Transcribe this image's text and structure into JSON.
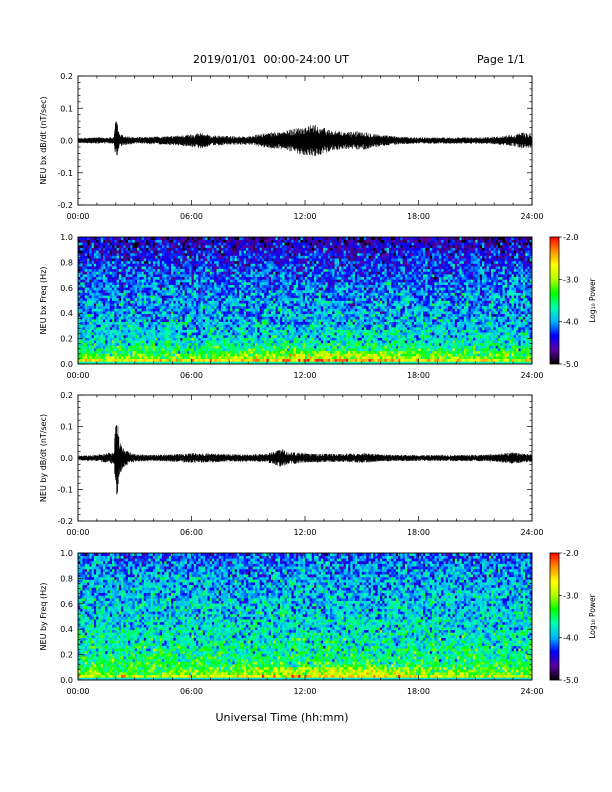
{
  "header": {
    "title": "2019/01/01  00:00-24:00 UT",
    "page": "Page 1/1"
  },
  "xlabel": "Universal Time (hh:mm)",
  "colorbar_levels": [
    "-2.0",
    "-3.0",
    "-4.0",
    "-5.0"
  ],
  "colors": {
    "colormap": [
      "#000000",
      "#5a00a0",
      "#0000ff",
      "#00b4ff",
      "#00ffb0",
      "#00ff00",
      "#b4ff00",
      "#ffff00",
      "#ff9000",
      "#ff0000"
    ]
  },
  "chart_data": [
    {
      "type": "line",
      "ylabel": "NEU bx dB/dt (nT/sec)",
      "xlim": [
        0,
        24
      ],
      "ylim": [
        -0.2,
        0.2
      ],
      "x_ticks": [
        "00:00",
        "06:00",
        "12:00",
        "18:00",
        "24:00"
      ],
      "y_ticks": [
        "0.2",
        "0.1",
        "0.0",
        "-0.1",
        "-0.2"
      ],
      "series": [
        {
          "envelope_hours": [
            0,
            1,
            1.9,
            2.0,
            2.1,
            2.2,
            2.5,
            3,
            4,
            5,
            6,
            6.5,
            7,
            8,
            9,
            10,
            11,
            11.5,
            12,
            12.5,
            13,
            13.5,
            14,
            15,
            16,
            17,
            18,
            19,
            20,
            21,
            22,
            23,
            23.5,
            24
          ],
          "envelope_amplitude": [
            0.008,
            0.01,
            0.01,
            0.07,
            0.05,
            0.02,
            0.015,
            0.01,
            0.012,
            0.014,
            0.02,
            0.025,
            0.016,
            0.014,
            0.013,
            0.024,
            0.03,
            0.04,
            0.045,
            0.05,
            0.04,
            0.032,
            0.026,
            0.03,
            0.018,
            0.012,
            0.01,
            0.01,
            0.01,
            0.01,
            0.012,
            0.018,
            0.025,
            0.02
          ]
        }
      ]
    },
    {
      "type": "heatmap",
      "ylabel": "NEU bx Freq (Hz)",
      "colorbar_label": "Log₁₀ Power",
      "xlim": [
        0,
        24
      ],
      "ylim": [
        0,
        1.0
      ],
      "clim": [
        -5.0,
        -2.0
      ],
      "x_ticks": [
        "00:00",
        "06:00",
        "12:00",
        "18:00",
        "24:00"
      ],
      "y_ticks": [
        "1.0",
        "0.8",
        "0.6",
        "0.4",
        "0.2",
        "0.0"
      ],
      "typical_log_power_by_freq": {
        "freq_hz": [
          0.0,
          0.02,
          0.05,
          0.1,
          0.2,
          0.4,
          0.6,
          0.8,
          1.0
        ],
        "log_power": [
          -5.0,
          -2.5,
          -3.2,
          -3.5,
          -3.8,
          -4.0,
          -4.1,
          -4.3,
          -4.6
        ]
      }
    },
    {
      "type": "line",
      "ylabel": "NEU by dB/dt (nT/sec)",
      "xlim": [
        0,
        24
      ],
      "ylim": [
        -0.2,
        0.2
      ],
      "x_ticks": [
        "00:00",
        "06:00",
        "12:00",
        "18:00",
        "24:00"
      ],
      "y_ticks": [
        "0.2",
        "0.1",
        "0.0",
        "-0.1",
        "-0.2"
      ],
      "series": [
        {
          "envelope_hours": [
            0,
            1,
            1.9,
            2.0,
            2.1,
            2.2,
            2.5,
            3,
            4,
            5,
            6,
            7,
            8,
            9,
            10,
            10.8,
            11,
            12,
            13,
            14,
            15,
            16,
            17,
            18,
            19,
            20,
            21,
            22,
            23,
            24
          ],
          "envelope_amplitude": [
            0.008,
            0.01,
            0.02,
            0.15,
            0.12,
            0.05,
            0.025,
            0.012,
            0.01,
            0.012,
            0.016,
            0.015,
            0.012,
            0.012,
            0.014,
            0.03,
            0.022,
            0.015,
            0.014,
            0.013,
            0.016,
            0.012,
            0.01,
            0.01,
            0.01,
            0.01,
            0.01,
            0.012,
            0.018,
            0.012
          ]
        }
      ]
    },
    {
      "type": "heatmap",
      "ylabel": "NEU by Freq (Hz)",
      "colorbar_label": "Log₁₀ Power",
      "xlim": [
        0,
        24
      ],
      "ylim": [
        0,
        1.0
      ],
      "clim": [
        -5.0,
        -2.0
      ],
      "x_ticks": [
        "00:00",
        "06:00",
        "12:00",
        "18:00",
        "24:00"
      ],
      "y_ticks": [
        "1.0",
        "0.8",
        "0.6",
        "0.4",
        "0.2",
        "0.0"
      ],
      "typical_log_power_by_freq": {
        "freq_hz": [
          0.0,
          0.02,
          0.05,
          0.1,
          0.2,
          0.4,
          0.6,
          0.8,
          1.0
        ],
        "log_power": [
          -5.0,
          -2.7,
          -3.2,
          -3.4,
          -3.6,
          -3.8,
          -3.9,
          -4.0,
          -4.2
        ]
      }
    }
  ]
}
